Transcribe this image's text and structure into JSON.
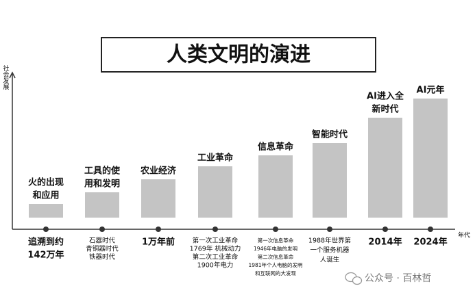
{
  "title": "人类文明的演进",
  "y_axis_label": "社会发展",
  "x_axis_label": "年代",
  "stages": [
    {
      "label": [
        "火的出现",
        "和应用"
      ],
      "time": [
        "追溯到约",
        "142万年"
      ]
    },
    {
      "label": [
        "工具的使",
        "用和发明"
      ],
      "time": [
        "石器时代",
        "青铜器时代",
        "铁器时代"
      ]
    },
    {
      "label": [
        "农业经济"
      ],
      "time": [
        "1万年前"
      ]
    },
    {
      "label": [
        "工业革命"
      ],
      "time": [
        "第一次工业革命",
        "1769年 机械动力",
        "第二次工业革命",
        "1900年电力"
      ]
    },
    {
      "label": [
        "信息革命"
      ],
      "time": [
        "第一次信息革命",
        "1946年电脑的发明",
        "第二次信息革命",
        "1981年个人电脑的发明",
        "和互联网的大发现"
      ]
    },
    {
      "label": [
        "智能时代"
      ],
      "time": [
        "1988年世界第",
        "一个服务机器",
        "人诞生"
      ]
    },
    {
      "label": [
        "AI进入全",
        "新时代"
      ],
      "time": [
        "2014年"
      ]
    },
    {
      "label": [
        "AI元年"
      ],
      "time": [
        "2024年"
      ]
    }
  ],
  "watermark": "公众号 · 百林哲"
}
